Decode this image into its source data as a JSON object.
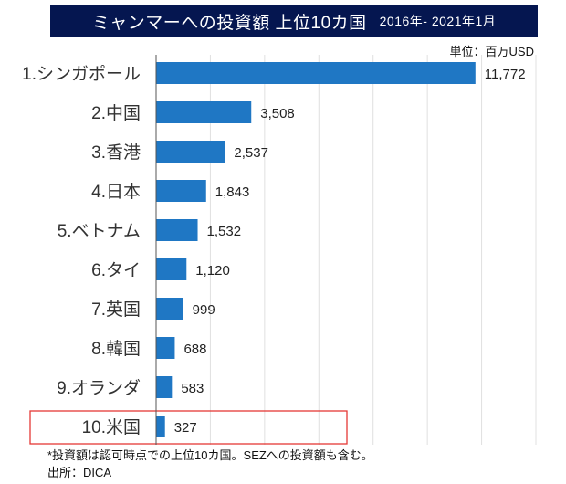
{
  "chart_data": {
    "type": "bar",
    "orientation": "horizontal",
    "title": "ミャンマーへの投資額 上位10カ国",
    "subtitle": "2016年- 2021年1月",
    "unit_label": "単位：百万USD",
    "categories": [
      "1.シンガポール",
      "2.中国",
      "3.香港",
      "4.日本",
      "5.ベトナム",
      "6.タイ",
      "7.英国",
      "8.韓国",
      "9.オランダ",
      "10.米国"
    ],
    "values": [
      11772,
      3508,
      2537,
      1843,
      1532,
      1120,
      999,
      688,
      583,
      327
    ],
    "value_labels": [
      "11,772",
      "3,508",
      "2,537",
      "1,843",
      "1,532",
      "1,120",
      "999",
      "688",
      "583",
      "327"
    ],
    "xlim": [
      0,
      14000
    ],
    "grid": true,
    "bar_color": "#1f77c4",
    "highlight_category": "10.米国",
    "highlight_color": "#e53935",
    "title_bg": "#051650"
  },
  "notes": {
    "footnote": "*投資額は認可時点での上位10カ国。SEZへの投資額も含む。",
    "source": "出所：DICA"
  }
}
